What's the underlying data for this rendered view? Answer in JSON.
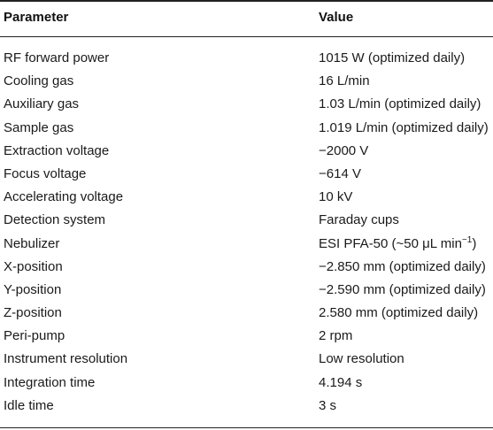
{
  "header": {
    "parameter_label": "Parameter",
    "value_label": "Value"
  },
  "rows": [
    {
      "parameter": "RF forward power",
      "value": "1015 W (optimized daily)"
    },
    {
      "parameter": "Cooling gas",
      "value": "16 L/min"
    },
    {
      "parameter": "Auxiliary gas",
      "value": "1.03 L/min (optimized daily)"
    },
    {
      "parameter": "Sample gas",
      "value": "1.019 L/min (optimized daily)"
    },
    {
      "parameter": "Extraction voltage",
      "value": "−2000 V"
    },
    {
      "parameter": "Focus voltage",
      "value": "−614 V"
    },
    {
      "parameter": "Accelerating voltage",
      "value": "10 kV"
    },
    {
      "parameter": "Detection system",
      "value": "Faraday cups"
    },
    {
      "parameter": "Nebulizer",
      "value": "ESI PFA-50 (~50 μL min",
      "value_sup": "−1",
      "value_after": ")"
    },
    {
      "parameter": "X-position",
      "value": "−2.850 mm (optimized daily)"
    },
    {
      "parameter": "Y-position",
      "value": "−2.590 mm (optimized daily)"
    },
    {
      "parameter": "Z-position",
      "value": "2.580 mm (optimized daily)"
    },
    {
      "parameter": "Peri-pump",
      "value": "2 rpm"
    },
    {
      "parameter": "Instrument resolution",
      "value": "Low resolution"
    },
    {
      "parameter": "Integration time",
      "value": "4.194 s"
    },
    {
      "parameter": "Idle time",
      "value": "3 s"
    }
  ]
}
